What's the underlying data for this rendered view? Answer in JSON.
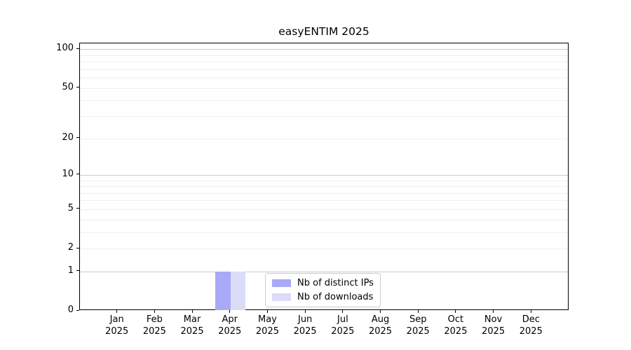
{
  "chart_data": {
    "type": "bar",
    "title": "easyENTIM 2025",
    "months": [
      "Jan",
      "Feb",
      "Mar",
      "Apr",
      "May",
      "Jun",
      "Jul",
      "Aug",
      "Sep",
      "Oct",
      "Nov",
      "Dec"
    ],
    "year": "2025",
    "series": [
      {
        "name": "Nb of distinct IPs",
        "color": "#a9a9f6",
        "values": [
          0,
          0,
          0,
          1,
          0,
          0,
          0,
          0,
          0,
          0,
          0,
          0
        ]
      },
      {
        "name": "Nb of downloads",
        "color": "#dcdcf9",
        "values": [
          0,
          0,
          0,
          1,
          0,
          0,
          0,
          0,
          0,
          0,
          0,
          0
        ]
      }
    ],
    "y_scale": "log1p",
    "y_axis_max": 111,
    "y_ticks": [
      0,
      1,
      2,
      5,
      10,
      20,
      50,
      100
    ],
    "y_grid_major": [
      1,
      10,
      100
    ],
    "y_grid_minor": [
      2,
      3,
      4,
      5,
      6,
      7,
      8,
      9,
      20,
      30,
      40,
      50,
      60,
      70,
      80,
      90
    ],
    "grid_major_color": "#cccccc",
    "grid_minor_color": "#efefef",
    "legend_position": "lower-center",
    "xlabel": "",
    "ylabel": ""
  }
}
